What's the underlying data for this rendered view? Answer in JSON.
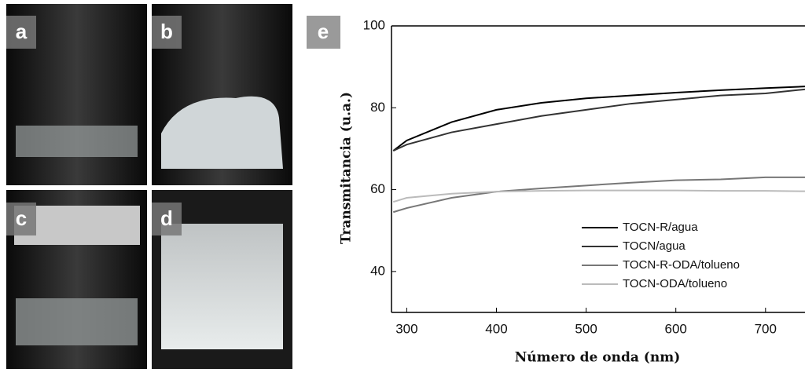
{
  "panels": [
    "a",
    "b",
    "c",
    "d"
  ],
  "chart_data": {
    "type": "line",
    "panel_label": "e",
    "x_label": "Número de onda (nm)",
    "y_label": "Transmitancia (u.a.)",
    "x": [
      285,
      300,
      350,
      400,
      450,
      500,
      550,
      600,
      650,
      700,
      744
    ],
    "series": [
      {
        "name": "TOCN-R/agua",
        "color": "#000000",
        "values": [
          69.5,
          72,
          76.5,
          79.5,
          81.2,
          82.3,
          83,
          83.7,
          84.3,
          84.8,
          85.2
        ]
      },
      {
        "name": "TOCN/agua",
        "color": "#333333",
        "values": [
          69.5,
          71,
          74,
          76,
          78,
          79.5,
          81,
          82,
          83,
          83.5,
          84.5
        ]
      },
      {
        "name": "TOCN-R-ODA/tolueno",
        "color": "#777777",
        "values": [
          54.5,
          55.5,
          58,
          59.5,
          60.3,
          61,
          61.7,
          62.3,
          62.5,
          63,
          63
        ]
      },
      {
        "name": "TOCN-ODA/tolueno",
        "color": "#bbbbbb",
        "values": [
          57,
          58,
          59,
          59.5,
          59.7,
          59.8,
          59.8,
          59.8,
          59.7,
          59.7,
          59.6
        ]
      }
    ],
    "xlim": [
      283,
      744
    ],
    "ylim": [
      30,
      100
    ],
    "xticks": [
      300,
      400,
      500,
      600,
      700
    ],
    "yticks": [
      40,
      60,
      80,
      100
    ],
    "legend": "lower right"
  }
}
